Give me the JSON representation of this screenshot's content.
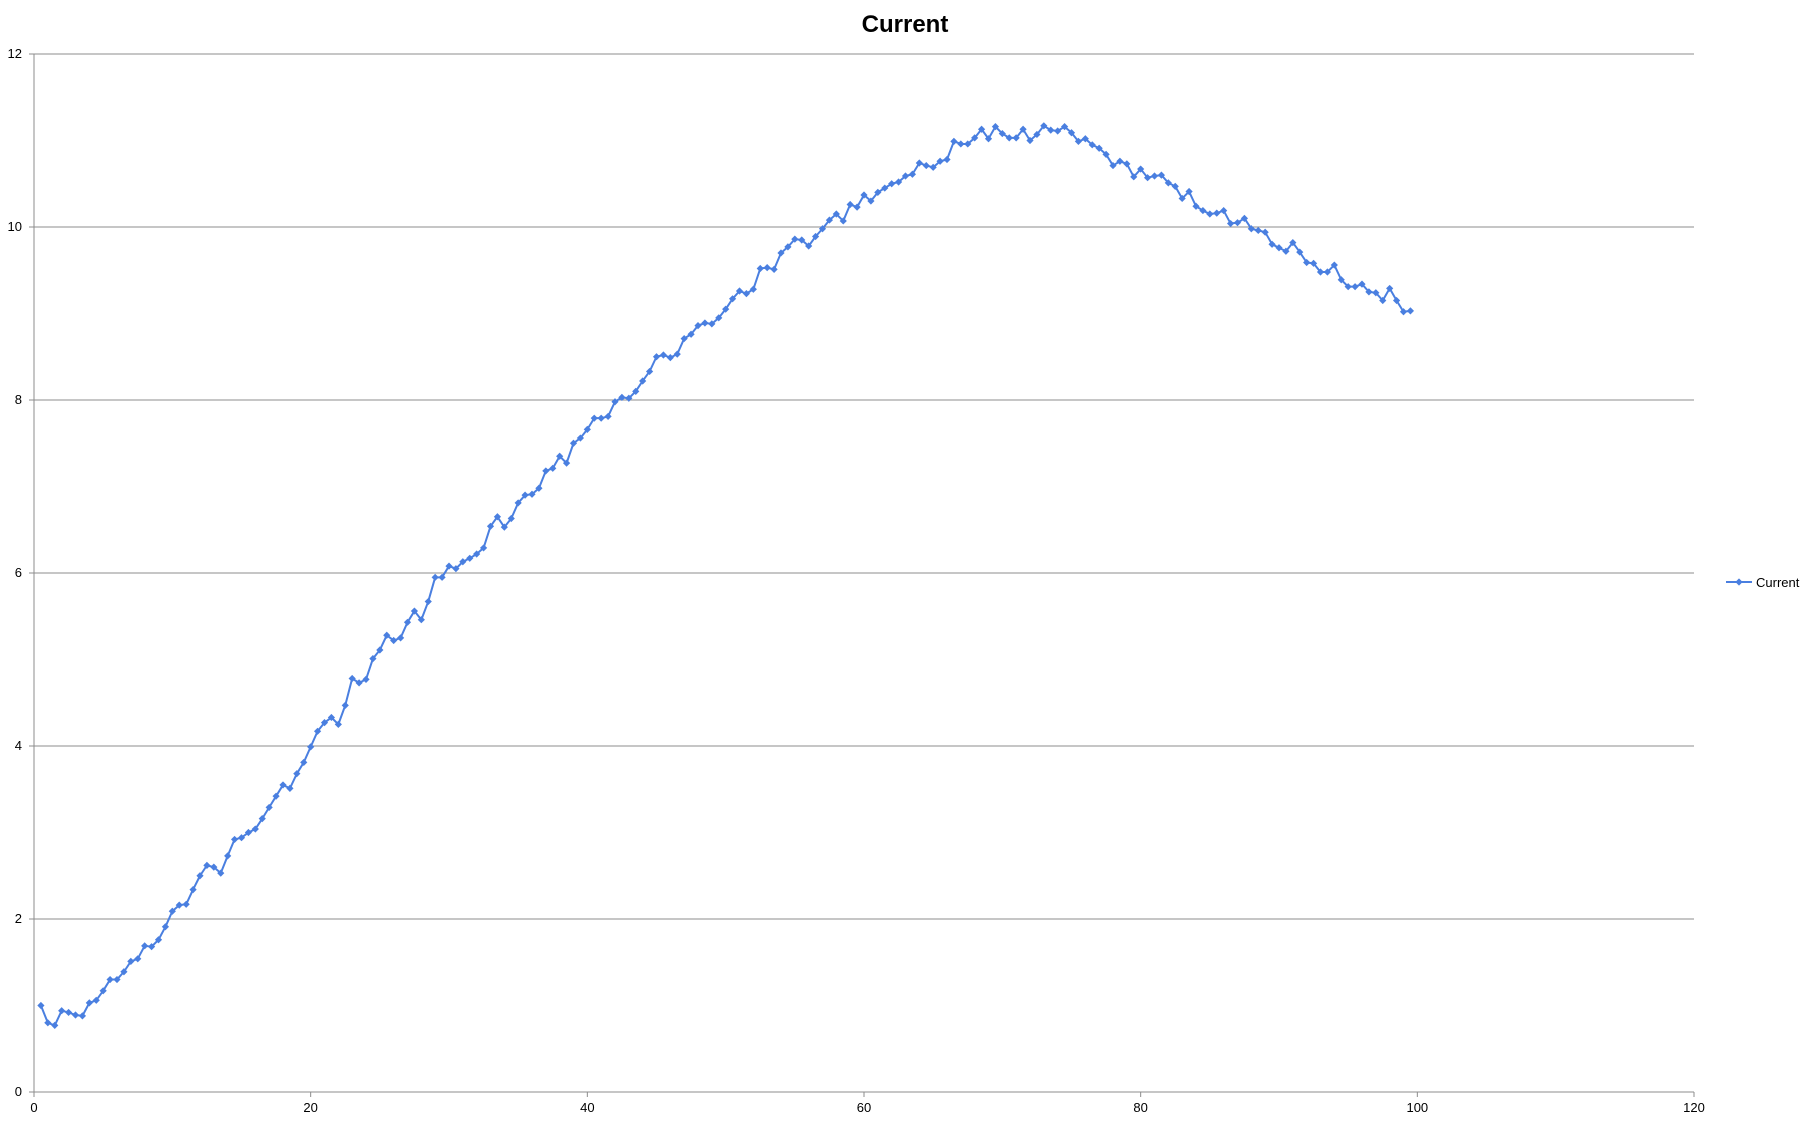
{
  "chart_data": {
    "type": "line",
    "title": "Current",
    "xlabel": "",
    "ylabel": "",
    "xlim": [
      0,
      120
    ],
    "ylim": [
      0,
      12
    ],
    "x_ticks": [
      0,
      20,
      40,
      60,
      80,
      100,
      120
    ],
    "y_ticks": [
      0,
      2,
      4,
      6,
      8,
      10,
      12
    ],
    "grid": "horizontal",
    "legend_position": "right",
    "series": [
      {
        "name": "Current",
        "color": "#4a7fe0",
        "marker": "diamond",
        "x": [
          0.5,
          1.0,
          1.5,
          2.0,
          2.5,
          3.0,
          3.5,
          4.0,
          4.5,
          5.0,
          5.5,
          6.0,
          6.5,
          7.0,
          7.5,
          8.0,
          8.5,
          9.0,
          9.5,
          10.0,
          10.5,
          11.0,
          11.5,
          12.0,
          12.5,
          13.0,
          13.5,
          14.0,
          14.5,
          15.0,
          15.5,
          16.0,
          16.5,
          17.0,
          17.5,
          18.0,
          18.5,
          19.0,
          19.5,
          20.0,
          20.5,
          21.0,
          21.5,
          22.0,
          22.5,
          23.0,
          23.5,
          24.0,
          24.5,
          25.0,
          25.5,
          26.0,
          26.5,
          27.0,
          27.5,
          28.0,
          28.5,
          29.0,
          29.5,
          30.0,
          30.5,
          31.0,
          31.5,
          32.0,
          32.5,
          33.0,
          33.5,
          34.0,
          34.5,
          35.0,
          35.5,
          36.0,
          36.5,
          37.0,
          37.5,
          38.0,
          38.5,
          39.0,
          39.5,
          40.0,
          40.5,
          41.0,
          41.5,
          42.0,
          42.5,
          43.0,
          43.5,
          44.0,
          44.5,
          45.0,
          45.5,
          46.0,
          46.5,
          47.0,
          47.5,
          48.0,
          48.5,
          49.0,
          49.5,
          50.0,
          50.5,
          51.0,
          51.5,
          52.0,
          52.5,
          53.0,
          53.5,
          54.0,
          54.5,
          55.0,
          55.5,
          56.0,
          56.5,
          57.0,
          57.5,
          58.0,
          58.5,
          59.0,
          59.5,
          60.0,
          60.5,
          61.0,
          61.5,
          62.0,
          62.5,
          63.0,
          63.5,
          64.0,
          64.5,
          65.0,
          65.5,
          66.0,
          66.5,
          67.0,
          67.5,
          68.0,
          68.5,
          69.0,
          69.5,
          70.0,
          70.5,
          71.0,
          71.5,
          72.0,
          72.5,
          73.0,
          73.5,
          74.0,
          74.5,
          75.0,
          75.5,
          76.0,
          76.5,
          77.0,
          77.5,
          78.0,
          78.5,
          79.0,
          79.5,
          80.0,
          80.5,
          81.0,
          81.5,
          82.0,
          82.5,
          83.0,
          83.5,
          84.0,
          84.5,
          85.0,
          85.5,
          86.0,
          86.5,
          87.0,
          87.5,
          88.0,
          88.5,
          89.0,
          89.5,
          90.0,
          90.5,
          91.0,
          91.5,
          92.0,
          92.5,
          93.0,
          93.5,
          94.0,
          94.5,
          95.0,
          95.5,
          96.0,
          96.5,
          97.0,
          97.5,
          98.0,
          98.5,
          99.0,
          99.5
        ],
        "y": [
          1.0,
          0.8,
          0.77,
          0.94,
          0.92,
          0.89,
          0.88,
          1.03,
          1.06,
          1.17,
          1.3,
          1.3,
          1.39,
          1.51,
          1.54,
          1.69,
          1.68,
          1.76,
          1.91,
          2.09,
          2.16,
          2.17,
          2.34,
          2.5,
          2.62,
          2.6,
          2.53,
          2.73,
          2.92,
          2.94,
          3.0,
          3.04,
          3.16,
          3.29,
          3.42,
          3.55,
          3.51,
          3.68,
          3.81,
          3.99,
          4.17,
          4.27,
          4.33,
          4.25,
          4.47,
          4.78,
          4.73,
          4.77,
          5.01,
          5.11,
          5.28,
          5.22,
          5.25,
          5.43,
          5.56,
          5.46,
          5.67,
          5.95,
          5.95,
          6.08,
          6.05,
          6.13,
          6.17,
          6.22,
          6.29,
          6.54,
          6.65,
          6.53,
          6.63,
          6.81,
          6.9,
          6.91,
          6.98,
          7.18,
          7.21,
          7.35,
          7.27,
          7.5,
          7.56,
          7.66,
          7.79,
          7.79,
          7.81,
          7.98,
          8.03,
          8.02,
          8.1,
          8.22,
          8.33,
          8.5,
          8.52,
          8.49,
          8.53,
          8.71,
          8.76,
          8.86,
          8.89,
          8.88,
          8.95,
          9.05,
          9.17,
          9.26,
          9.23,
          9.28,
          9.52,
          9.53,
          9.51,
          9.7,
          9.77,
          9.86,
          9.85,
          9.78,
          9.89,
          9.98,
          10.08,
          10.15,
          10.07,
          10.26,
          10.23,
          10.37,
          10.3,
          10.4,
          10.45,
          10.5,
          10.52,
          10.59,
          10.61,
          10.74,
          10.71,
          10.69,
          10.76,
          10.78,
          10.99,
          10.96,
          10.96,
          11.03,
          11.13,
          11.02,
          11.16,
          11.08,
          11.03,
          11.03,
          11.13,
          11.0,
          11.07,
          11.17,
          11.12,
          11.11,
          11.16,
          11.09,
          10.99,
          11.02,
          10.95,
          10.91,
          10.84,
          10.71,
          10.76,
          10.73,
          10.58,
          10.67,
          10.57,
          10.59,
          10.6,
          10.51,
          10.47,
          10.33,
          10.41,
          10.24,
          10.19,
          10.15,
          10.16,
          10.19,
          10.04,
          10.05,
          10.1,
          9.98,
          9.96,
          9.94,
          9.8,
          9.76,
          9.72,
          9.82,
          9.71,
          9.59,
          9.58,
          9.48,
          9.48,
          9.56,
          9.39,
          9.31,
          9.31,
          9.34,
          9.25,
          9.24,
          9.15,
          9.29,
          9.15,
          9.02,
          9.03
        ]
      }
    ]
  }
}
